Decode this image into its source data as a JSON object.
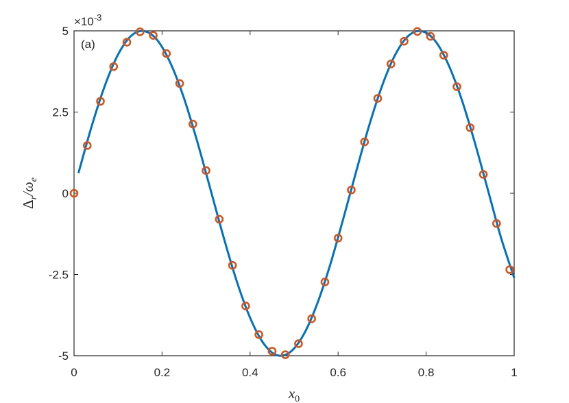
{
  "chart_data": {
    "type": "line",
    "annotation": "(a)",
    "y_exponent": {
      "base": "×10",
      "power": "-3"
    },
    "xlabel": {
      "base": "x",
      "sub": "0"
    },
    "ylabel": [
      {
        "text": "Δ",
        "sub": false
      },
      {
        "text": "r",
        "sub": true
      },
      {
        "text": "/ω",
        "sub": false
      },
      {
        "text": "e",
        "sub": true
      }
    ],
    "xlim": [
      0,
      1
    ],
    "xticks": [
      0,
      0.2,
      0.4,
      0.6,
      0.8,
      1
    ],
    "ylim": [
      -5,
      5
    ],
    "yticks": [
      -5,
      -2.5,
      0,
      2.5,
      5
    ],
    "series": [
      {
        "style": "line",
        "color": "#0072BD",
        "x": [
          0.01,
          0.04,
          0.07,
          0.1,
          0.13,
          0.16,
          0.19,
          0.22,
          0.25,
          0.28,
          0.31,
          0.34,
          0.37,
          0.4,
          0.43,
          0.46,
          0.49,
          0.52,
          0.55,
          0.58,
          0.61,
          0.64,
          0.67,
          0.7,
          0.73,
          0.76,
          0.79,
          0.82,
          0.85,
          0.88,
          0.91,
          0.94,
          0.97,
          1.0
        ],
        "values": [
          0.62,
          2.06,
          3.31,
          4.27,
          4.85,
          4.99,
          4.7,
          3.98,
          2.92,
          1.59,
          0.12,
          -1.36,
          -2.72,
          -3.83,
          -4.61,
          -4.98,
          -4.9,
          -4.39,
          -3.49,
          -2.29,
          -0.87,
          0.62,
          2.06,
          3.31,
          4.27,
          4.85,
          4.99,
          4.7,
          3.98,
          2.92,
          1.59,
          0.12,
          -1.36,
          -2.6
        ]
      },
      {
        "style": "markers",
        "color": "#D95319",
        "x": [
          0,
          0.03,
          0.06,
          0.09,
          0.12,
          0.15,
          0.18,
          0.21,
          0.24,
          0.27,
          0.3,
          0.33,
          0.36,
          0.39,
          0.42,
          0.45,
          0.48,
          0.51,
          0.54,
          0.57,
          0.6,
          0.63,
          0.66,
          0.69,
          0.72,
          0.75,
          0.78,
          0.81,
          0.84,
          0.87,
          0.9,
          0.93,
          0.96,
          0.99
        ],
        "values": [
          0,
          1.47,
          2.83,
          3.9,
          4.65,
          4.97,
          4.86,
          4.3,
          3.38,
          2.13,
          0.7,
          -0.8,
          -2.22,
          -3.47,
          -4.35,
          -4.86,
          -4.97,
          -4.63,
          -3.86,
          -2.73,
          -1.38,
          0.1,
          1.58,
          2.92,
          3.98,
          4.68,
          4.98,
          4.83,
          4.25,
          3.28,
          2.02,
          0.58,
          -0.93,
          -2.35
        ]
      }
    ]
  }
}
